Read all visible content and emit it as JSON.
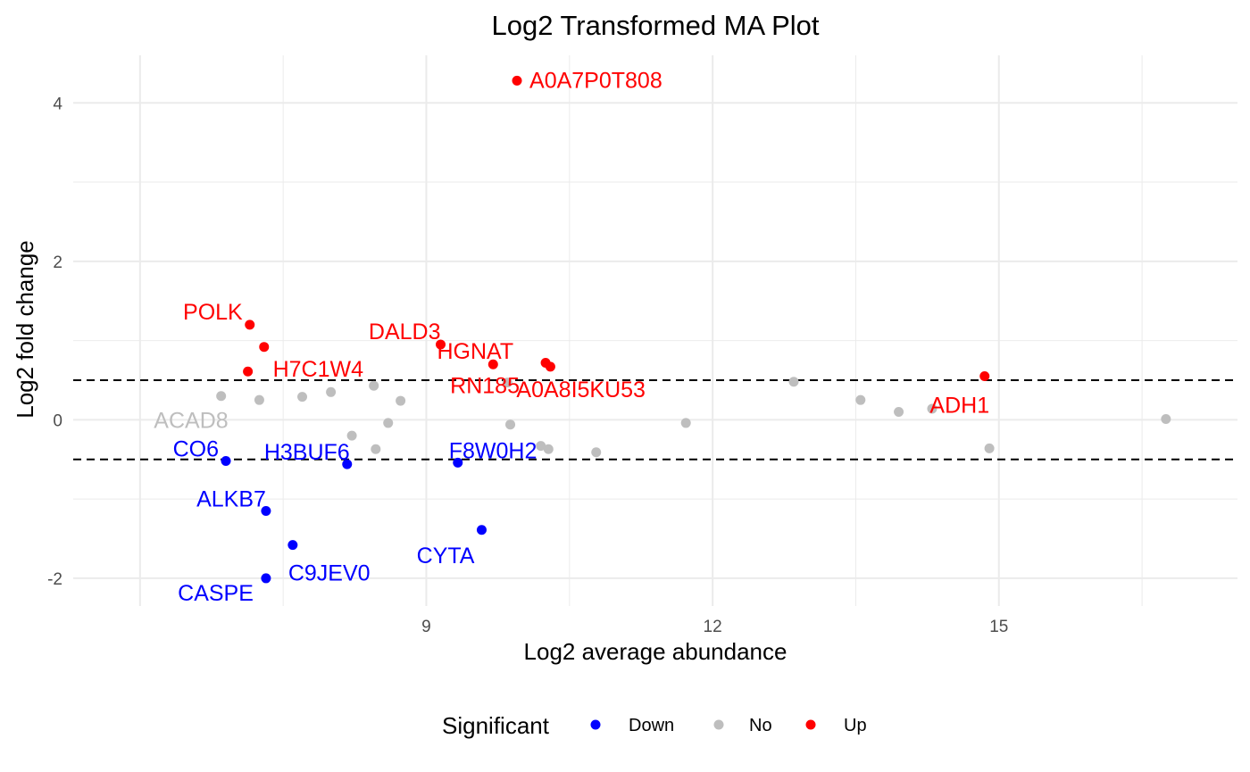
{
  "chart_data": {
    "type": "scatter",
    "title": "Log2 Transformed MA Plot",
    "xlabel": "Log2 average abundance",
    "ylabel": "Log2 fold change",
    "xlim": [
      5.3,
      17.5
    ],
    "ylim": [
      -2.35,
      4.6
    ],
    "x_ticks": [
      {
        "value": 9,
        "label": "9"
      },
      {
        "value": 12,
        "label": "12"
      },
      {
        "value": 15,
        "label": "15"
      }
    ],
    "y_ticks": [
      {
        "value": -2,
        "label": "-2"
      },
      {
        "value": 0,
        "label": "0"
      },
      {
        "value": 2,
        "label": "2"
      },
      {
        "value": 4,
        "label": "4"
      }
    ],
    "grid": true,
    "thresholds": [
      0.5,
      -0.5
    ],
    "legend": {
      "title": "Significant",
      "placement": "bottom",
      "entries": [
        {
          "name": "Down",
          "color": "#0000ff"
        },
        {
          "name": "No",
          "color": "#bebebe"
        },
        {
          "name": "Up",
          "color": "#ff0000"
        }
      ]
    },
    "series": [
      {
        "name": "Up",
        "color": "#ff0000",
        "points": [
          {
            "x": 9.95,
            "y": 4.28,
            "label": "A0A7P0T808"
          },
          {
            "x": 7.15,
            "y": 1.2,
            "label": "POLK"
          },
          {
            "x": 7.3,
            "y": 0.92,
            "label": ""
          },
          {
            "x": 7.13,
            "y": 0.61,
            "label": "H7C1W4"
          },
          {
            "x": 9.15,
            "y": 0.95,
            "label": "DALD3"
          },
          {
            "x": 9.7,
            "y": 0.7,
            "label": "HGNAT"
          },
          {
            "x": 10.25,
            "y": 0.72,
            "label": "RN185"
          },
          {
            "x": 10.3,
            "y": 0.67,
            "label": "A0A8I5KU53"
          },
          {
            "x": 14.85,
            "y": 0.55,
            "label": "ADH1"
          }
        ]
      },
      {
        "name": "No",
        "color": "#bebebe",
        "points": [
          {
            "x": 6.85,
            "y": 0.3,
            "label": "ACAD8"
          },
          {
            "x": 7.25,
            "y": 0.25,
            "label": ""
          },
          {
            "x": 7.7,
            "y": 0.29,
            "label": ""
          },
          {
            "x": 8.0,
            "y": 0.35,
            "label": ""
          },
          {
            "x": 8.45,
            "y": 0.43,
            "label": ""
          },
          {
            "x": 8.73,
            "y": 0.24,
            "label": ""
          },
          {
            "x": 9.85,
            "y": 0.47,
            "label": ""
          },
          {
            "x": 12.85,
            "y": 0.48,
            "label": ""
          },
          {
            "x": 13.55,
            "y": 0.25,
            "label": ""
          },
          {
            "x": 13.95,
            "y": 0.1,
            "label": ""
          },
          {
            "x": 14.3,
            "y": 0.14,
            "label": ""
          },
          {
            "x": 16.75,
            "y": 0.01,
            "label": ""
          },
          {
            "x": 8.6,
            "y": -0.04,
            "label": ""
          },
          {
            "x": 9.88,
            "y": -0.06,
            "label": ""
          },
          {
            "x": 11.72,
            "y": -0.04,
            "label": ""
          },
          {
            "x": 8.22,
            "y": -0.2,
            "label": ""
          },
          {
            "x": 8.47,
            "y": -0.37,
            "label": ""
          },
          {
            "x": 10.2,
            "y": -0.33,
            "label": ""
          },
          {
            "x": 10.28,
            "y": -0.37,
            "label": ""
          },
          {
            "x": 10.78,
            "y": -0.41,
            "label": ""
          },
          {
            "x": 14.9,
            "y": -0.36,
            "label": ""
          }
        ]
      },
      {
        "name": "Down",
        "color": "#0000ff",
        "points": [
          {
            "x": 6.9,
            "y": -0.52,
            "label": "CO6"
          },
          {
            "x": 8.17,
            "y": -0.56,
            "label": "H3BUF6"
          },
          {
            "x": 9.33,
            "y": -0.54,
            "label": "F8W0H2"
          },
          {
            "x": 7.32,
            "y": -1.15,
            "label": "ALKB7"
          },
          {
            "x": 7.6,
            "y": -1.58,
            "label": "C9JEV0"
          },
          {
            "x": 9.58,
            "y": -1.39,
            "label": "CYTA"
          },
          {
            "x": 7.32,
            "y": -2.0,
            "label": "CASPE"
          }
        ]
      }
    ]
  }
}
